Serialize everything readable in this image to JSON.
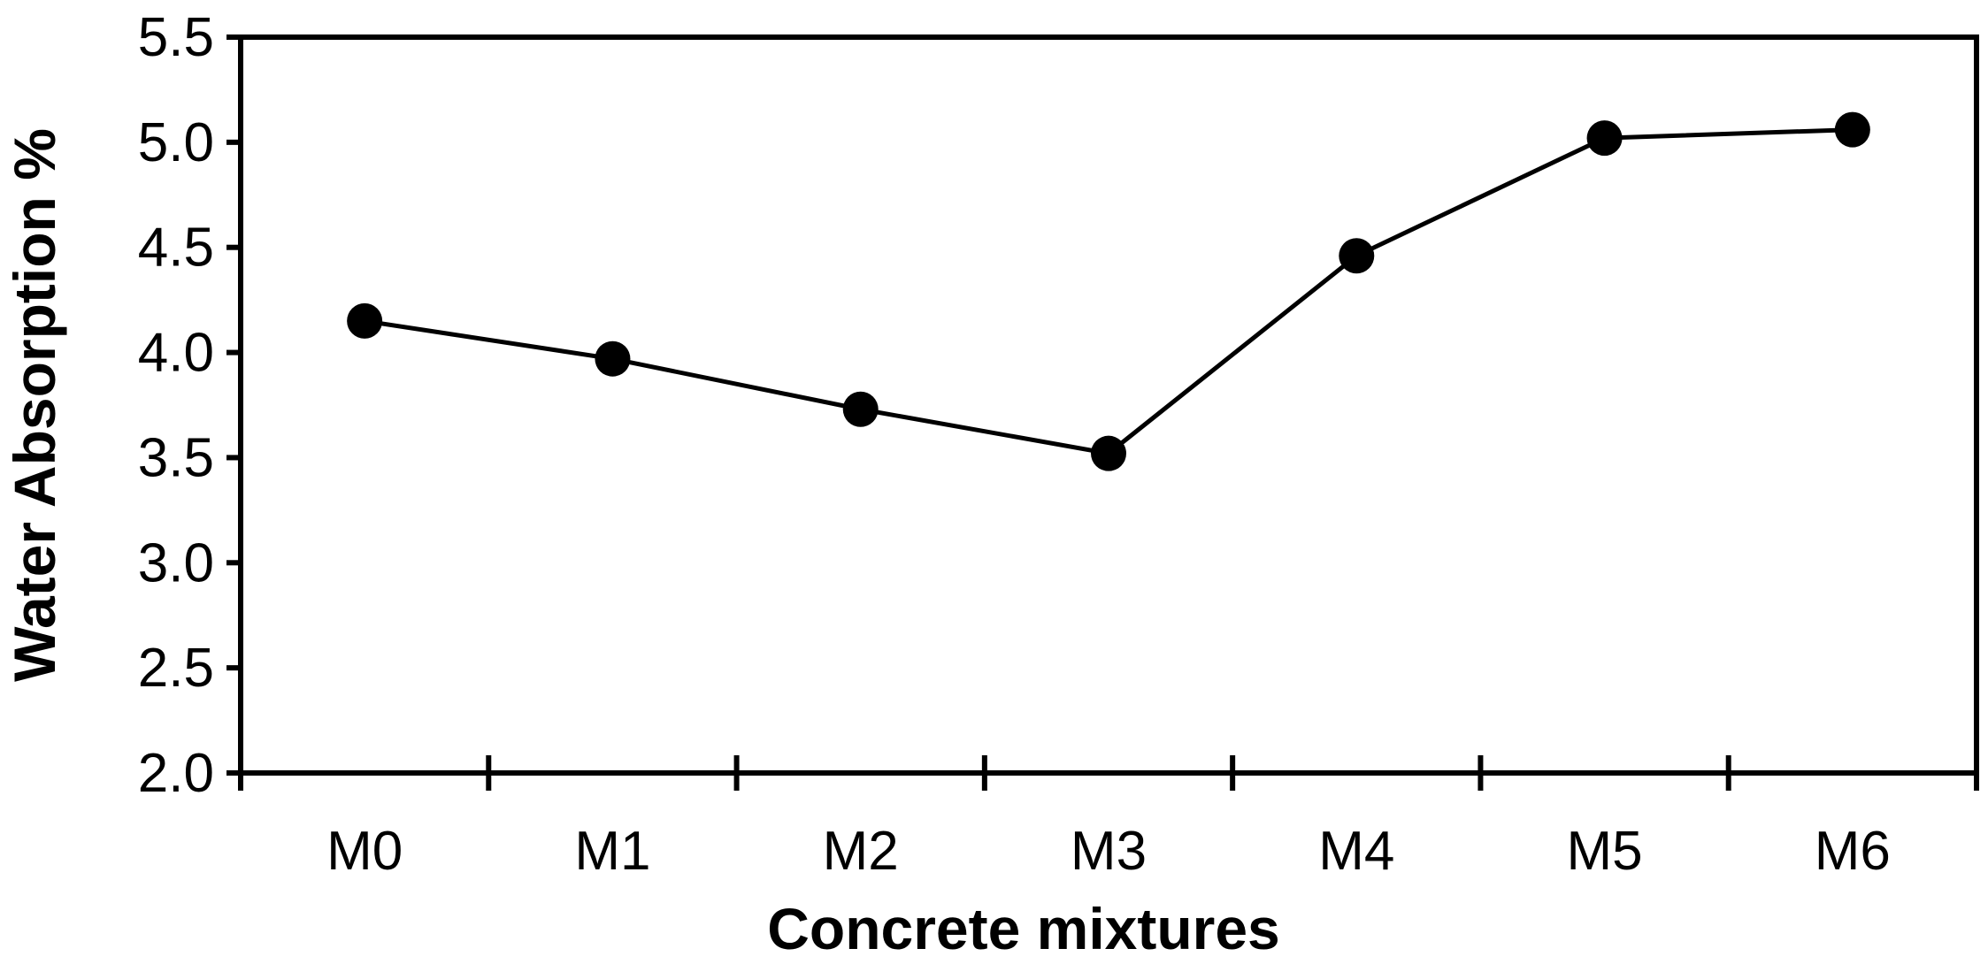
{
  "chart_data": {
    "type": "line",
    "title": "",
    "xlabel": "Concrete mixtures",
    "ylabel": "Water Absorption %",
    "categories": [
      "M0",
      "M1",
      "M2",
      "M3",
      "M4",
      "M5",
      "M6"
    ],
    "series": [
      {
        "values": [
          4.15,
          3.97,
          3.73,
          3.52,
          4.46,
          5.02,
          5.06
        ],
        "color": "#000000",
        "marker": "circle"
      }
    ],
    "ylim": [
      2.0,
      5.5
    ],
    "yticks": [
      "2.0",
      "2.5",
      "3.0",
      "3.5",
      "4.0",
      "4.5",
      "5.0",
      "5.5"
    ],
    "grid": false,
    "legend": "none"
  }
}
